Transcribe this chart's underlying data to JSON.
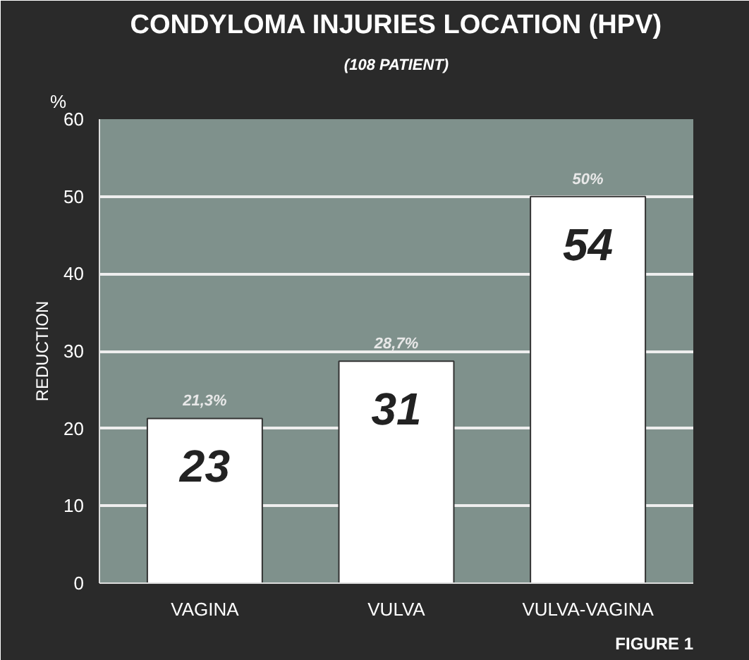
{
  "chart_data": {
    "type": "bar",
    "title": "CONDYLOMA INJURIES LOCATION (HPV)",
    "subtitle": "(108 PATIENT)",
    "ylabel": "REDUCTION",
    "categories": [
      "VAGINA",
      "VULVA",
      "VULVA-VAGINA"
    ],
    "values": [
      21.3,
      28.7,
      50
    ],
    "color": "#ffffff",
    "value_labels": [
      "21,3%",
      "28,7%",
      "50%"
    ],
    "ylim": [
      0,
      60
    ],
    "yticks": [
      0,
      10,
      20,
      30,
      40,
      50,
      60
    ],
    "grid": "y",
    "annotations": [
      "%",
      "23",
      "31",
      "54",
      "FIGURE 1"
    ]
  }
}
